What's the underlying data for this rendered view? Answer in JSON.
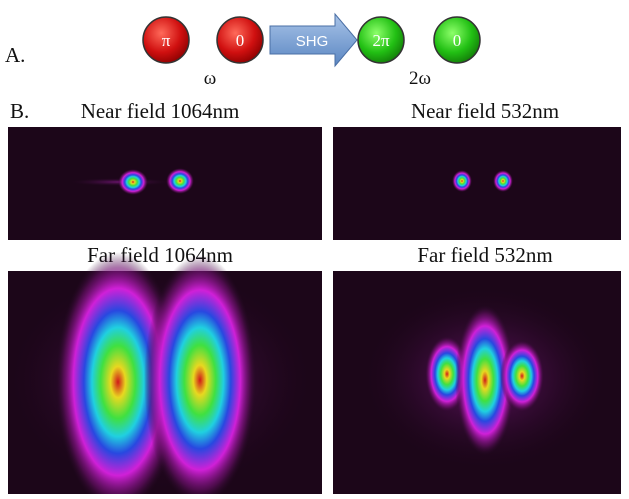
{
  "panel_a": {
    "label": "A.",
    "input_modes": [
      "π",
      "0"
    ],
    "arrow_label": "SHG",
    "output_modes": [
      "2π",
      "0"
    ],
    "input_frequency": "ω",
    "output_frequency": "2ω"
  },
  "panel_b": {
    "label": "B.",
    "images": [
      {
        "title": "Near field 1064nm"
      },
      {
        "title": "Near field 532nm"
      },
      {
        "title": "Far field 1064nm"
      },
      {
        "title": "Far field 532nm"
      }
    ]
  }
}
